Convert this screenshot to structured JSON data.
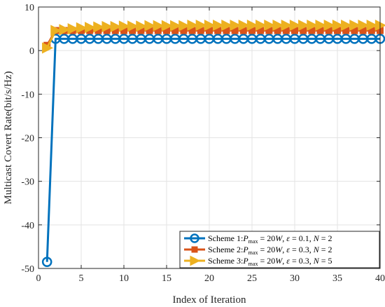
{
  "chart_data": {
    "type": "line",
    "xlabel": "Index of Iteration",
    "ylabel": "Multicast Covert Rate(bit/s/Hz)",
    "xlim": [
      0,
      40
    ],
    "ylim": [
      -50,
      10
    ],
    "xticks": [
      0,
      5,
      10,
      15,
      20,
      25,
      30,
      35,
      40
    ],
    "yticks": [
      10,
      0,
      -10,
      -20,
      -30,
      -40,
      -50
    ],
    "grid": true,
    "legend_position": "bottom-right",
    "x": [
      1,
      2,
      3,
      4,
      5,
      6,
      7,
      8,
      9,
      10,
      11,
      12,
      13,
      14,
      15,
      16,
      17,
      18,
      19,
      20,
      21,
      22,
      23,
      24,
      25,
      26,
      27,
      28,
      29,
      30,
      31,
      32,
      33,
      34,
      35,
      36,
      37,
      38,
      39,
      40
    ],
    "series": [
      {
        "name": "Scheme 1:P_max = 20W, ε = 0.1, N = 2",
        "legend_parts": [
          "Scheme 1:",
          "P",
          "max",
          " = 20",
          "W",
          ", ",
          "ε",
          " = 0.1, ",
          "N",
          " = 2"
        ],
        "color": "#0072BD",
        "marker": "circle",
        "values": [
          -48.5,
          2.7,
          2.7,
          2.7,
          2.7,
          2.7,
          2.7,
          2.7,
          2.7,
          2.7,
          2.7,
          2.7,
          2.7,
          2.7,
          2.7,
          2.7,
          2.7,
          2.7,
          2.7,
          2.7,
          2.7,
          2.7,
          2.7,
          2.7,
          2.7,
          2.7,
          2.7,
          2.7,
          2.7,
          2.7,
          2.7,
          2.7,
          2.7,
          2.7,
          2.7,
          2.7,
          2.7,
          2.7,
          2.7,
          2.7
        ]
      },
      {
        "name": "Scheme 2:P_max = 20W, ε = 0.3, N = 2",
        "legend_parts": [
          "Scheme 2:",
          "P",
          "max",
          " = 20",
          "W",
          ", ",
          "ε",
          " = 0.3, ",
          "N",
          " = 2"
        ],
        "color": "#D95319",
        "marker": "square",
        "values": [
          1.2,
          4.6,
          4.6,
          4.6,
          4.6,
          4.6,
          4.6,
          4.6,
          4.6,
          4.6,
          4.6,
          4.6,
          4.6,
          4.6,
          4.6,
          4.6,
          4.6,
          4.6,
          4.6,
          4.6,
          4.6,
          4.6,
          4.6,
          4.6,
          4.6,
          4.6,
          4.6,
          4.6,
          4.6,
          4.6,
          4.6,
          4.6,
          4.6,
          4.6,
          4.6,
          4.6,
          4.6,
          4.6,
          4.6,
          4.6
        ]
      },
      {
        "name": "Scheme 3:P_max = 20W, ε = 0.3, N = 5",
        "legend_parts": [
          "Scheme 3:",
          "P",
          "max",
          " = 20",
          "W",
          ", ",
          "ε",
          " = 0.3, ",
          "N",
          " = 5"
        ],
        "color": "#EDB120",
        "marker": "triangle-right",
        "values": [
          0.6,
          4.6,
          4.8,
          5.0,
          5.2,
          5.3,
          5.4,
          5.5,
          5.5,
          5.6,
          5.6,
          5.6,
          5.7,
          5.7,
          5.7,
          5.7,
          5.7,
          5.8,
          5.8,
          5.8,
          5.8,
          5.8,
          5.8,
          5.8,
          5.8,
          5.8,
          5.8,
          5.8,
          5.8,
          5.8,
          5.8,
          5.8,
          5.8,
          5.8,
          5.8,
          5.8,
          5.8,
          5.8,
          5.8,
          5.8
        ]
      }
    ]
  }
}
